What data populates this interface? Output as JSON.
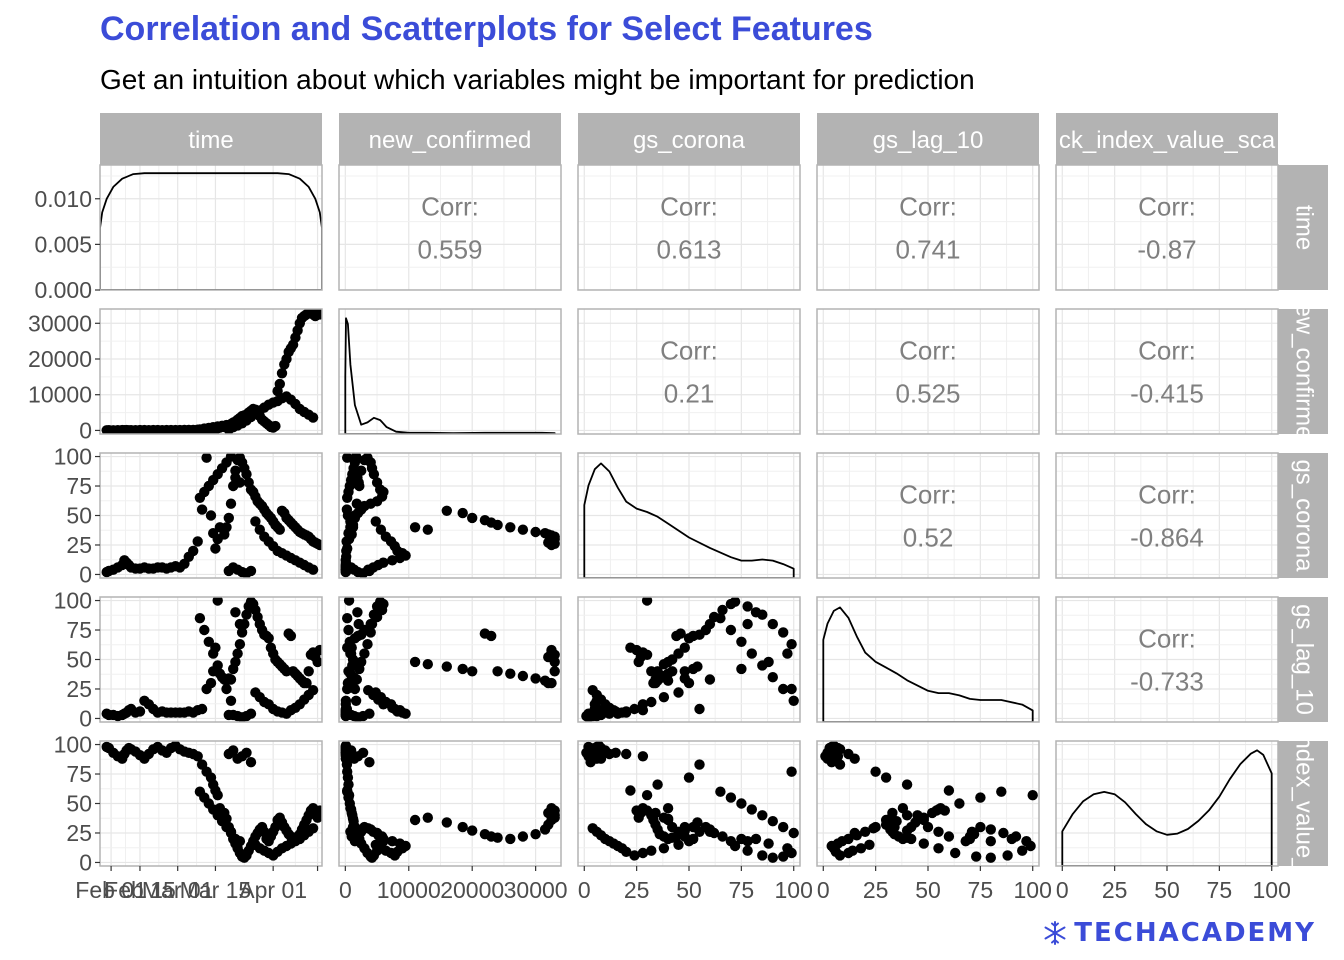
{
  "title": "Correlation and Scatterplots for Select Features",
  "subtitle": "Get an intuition about which variables might be important for prediction",
  "colors": {
    "title": "#3b4cd8",
    "strip": "#b3b3b3",
    "corr_text": "#7f7f7f",
    "points": "#000000",
    "grid": "#e6e6e6"
  },
  "logo_icon": "snowflake-icon",
  "logo_text": "TECHACADEMY",
  "chart_data": {
    "type": "scatter",
    "variables": [
      "time",
      "new_confirmed",
      "gs_corona",
      "gs_lag_10",
      "stock_index_value_scaled"
    ],
    "column_strips": [
      "time",
      "new_confirmed",
      "gs_corona",
      "gs_lag_10",
      "ck_index_value_sca"
    ],
    "row_strips": [
      "time",
      "ew_confirme",
      "gs_corona",
      "gs_lag_10",
      "ndex_value_"
    ],
    "corr_label": "Corr:",
    "correlations": [
      {
        "row": 0,
        "col": 1,
        "value": "0.559"
      },
      {
        "row": 0,
        "col": 2,
        "value": "0.613"
      },
      {
        "row": 0,
        "col": 3,
        "value": "0.741"
      },
      {
        "row": 0,
        "col": 4,
        "value": "-0.87"
      },
      {
        "row": 1,
        "col": 2,
        "value": "0.21"
      },
      {
        "row": 1,
        "col": 3,
        "value": "0.525"
      },
      {
        "row": 1,
        "col": 4,
        "value": "-0.415"
      },
      {
        "row": 2,
        "col": 3,
        "value": "0.52"
      },
      {
        "row": 2,
        "col": 4,
        "value": "-0.864"
      },
      {
        "row": 3,
        "col": 4,
        "value": "-0.733"
      }
    ],
    "axes": {
      "x": [
        {
          "range": [
            0,
            1
          ],
          "ticks": [
            0.05,
            0.18,
            0.35,
            0.52,
            0.78,
            0.98
          ],
          "labels": [
            "Feb 01",
            "Feb 15",
            "Mar 01",
            "Mar 15",
            "Apr 01",
            ""
          ]
        },
        {
          "range": [
            -1000,
            34000
          ],
          "ticks": [
            0,
            10000,
            20000,
            30000
          ],
          "labels": [
            "0",
            "10000",
            "20000",
            "30000"
          ]
        },
        {
          "range": [
            -3,
            103
          ],
          "ticks": [
            0,
            25,
            50,
            75,
            100
          ],
          "labels": [
            "0",
            "25",
            "50",
            "75",
            "100"
          ]
        },
        {
          "range": [
            -3,
            103
          ],
          "ticks": [
            0,
            25,
            50,
            75,
            100
          ],
          "labels": [
            "0",
            "25",
            "50",
            "75",
            "100"
          ]
        },
        {
          "range": [
            -3,
            103
          ],
          "ticks": [
            0,
            25,
            50,
            75,
            100
          ],
          "labels": [
            "0",
            "25",
            "50",
            "75",
            "100"
          ]
        }
      ],
      "y": [
        {
          "range": [
            0,
            0.0137
          ],
          "ticks": [
            0,
            0.005,
            0.01
          ],
          "labels": [
            "0.000",
            "0.005",
            "0.010"
          ]
        },
        {
          "range": [
            -1000,
            34000
          ],
          "ticks": [
            0,
            10000,
            20000,
            30000
          ],
          "labels": [
            "0",
            "10000",
            "20000",
            "30000"
          ]
        },
        {
          "range": [
            -3,
            103
          ],
          "ticks": [
            0,
            25,
            50,
            75,
            100
          ],
          "labels": [
            "0",
            "25",
            "50",
            "75",
            "100"
          ]
        },
        {
          "range": [
            -3,
            103
          ],
          "ticks": [
            0,
            25,
            50,
            75,
            100
          ],
          "labels": [
            "0",
            "25",
            "50",
            "75",
            "100"
          ]
        },
        {
          "range": [
            -3,
            103
          ],
          "ticks": [
            0,
            25,
            50,
            75,
            100
          ],
          "labels": [
            "0",
            "25",
            "50",
            "75",
            "100"
          ]
        }
      ]
    },
    "densities": [
      {
        "variable": "time",
        "x": [
          0,
          0.01,
          0.03,
          0.06,
          0.1,
          0.15,
          0.2,
          0.3,
          0.5,
          0.7,
          0.8,
          0.85,
          0.9,
          0.94,
          0.97,
          0.99,
          1
        ],
        "y": [
          0.0068,
          0.0085,
          0.01,
          0.0113,
          0.0122,
          0.0127,
          0.0128,
          0.0128,
          0.0128,
          0.0128,
          0.0128,
          0.0127,
          0.0122,
          0.0113,
          0.01,
          0.0085,
          0.0068
        ]
      },
      {
        "variable": "new_confirmed",
        "x": [
          0,
          100,
          400,
          800,
          1500,
          2500,
          3500,
          4500,
          5500,
          6500,
          8000,
          10000,
          13000,
          17000,
          22000,
          27000,
          31000,
          33000
        ],
        "y": [
          0.5,
          1.0,
          0.95,
          0.6,
          0.25,
          0.08,
          0.1,
          0.14,
          0.12,
          0.06,
          0.02,
          0.01,
          0.01,
          0.008,
          0.01,
          0.01,
          0.01,
          0.008
        ]
      },
      {
        "variable": "gs_corona",
        "x": [
          0,
          2,
          5,
          8,
          12,
          16,
          20,
          25,
          30,
          35,
          40,
          50,
          60,
          70,
          75,
          80,
          85,
          90,
          95,
          100
        ],
        "y": [
          0.63,
          0.8,
          0.94,
          0.99,
          0.92,
          0.78,
          0.66,
          0.6,
          0.57,
          0.53,
          0.47,
          0.35,
          0.26,
          0.18,
          0.15,
          0.15,
          0.16,
          0.15,
          0.12,
          0.08
        ]
      },
      {
        "variable": "gs_lag_10",
        "x": [
          0,
          2,
          5,
          8,
          12,
          16,
          20,
          25,
          30,
          35,
          40,
          50,
          55,
          60,
          65,
          70,
          75,
          85,
          95,
          100
        ],
        "y": [
          0.71,
          0.85,
          0.96,
          0.99,
          0.9,
          0.74,
          0.6,
          0.52,
          0.47,
          0.42,
          0.36,
          0.27,
          0.25,
          0.25,
          0.23,
          0.2,
          0.19,
          0.19,
          0.15,
          0.1
        ]
      },
      {
        "variable": "stock_index_value_scaled",
        "x": [
          0,
          5,
          10,
          15,
          20,
          25,
          30,
          35,
          40,
          45,
          50,
          55,
          60,
          65,
          70,
          75,
          80,
          85,
          90,
          93,
          96,
          100
        ],
        "y": [
          0.3,
          0.45,
          0.56,
          0.62,
          0.64,
          0.62,
          0.55,
          0.45,
          0.36,
          0.3,
          0.27,
          0.28,
          0.32,
          0.39,
          0.48,
          0.6,
          0.75,
          0.88,
          0.97,
          1.0,
          0.96,
          0.8
        ]
      }
    ],
    "observations": [
      [
        0.03,
        50,
        2,
        4,
        98
      ],
      [
        0.04,
        60,
        3,
        3,
        97
      ],
      [
        0.06,
        40,
        4,
        3,
        93
      ],
      [
        0.08,
        70,
        6,
        2,
        90
      ],
      [
        0.1,
        90,
        8,
        3,
        88
      ],
      [
        0.11,
        60,
        12,
        4,
        92
      ],
      [
        0.12,
        80,
        10,
        5,
        95
      ],
      [
        0.13,
        50,
        8,
        7,
        97
      ],
      [
        0.14,
        70,
        6,
        8,
        96
      ],
      [
        0.16,
        60,
        5,
        5,
        94
      ],
      [
        0.18,
        100,
        5,
        6,
        91
      ],
      [
        0.2,
        90,
        6,
        15,
        88
      ],
      [
        0.22,
        70,
        5,
        12,
        92
      ],
      [
        0.24,
        100,
        5,
        8,
        96
      ],
      [
        0.26,
        80,
        6,
        5,
        98
      ],
      [
        0.28,
        60,
        6,
        6,
        95
      ],
      [
        0.3,
        100,
        5,
        5,
        93
      ],
      [
        0.32,
        90,
        6,
        5,
        97
      ],
      [
        0.34,
        80,
        7,
        5,
        99
      ],
      [
        0.36,
        100,
        6,
        5,
        96
      ],
      [
        0.38,
        120,
        9,
        5,
        94
      ],
      [
        0.4,
        130,
        15,
        6,
        93
      ],
      [
        0.42,
        150,
        20,
        5,
        92
      ],
      [
        0.44,
        200,
        28,
        7,
        90
      ],
      [
        0.46,
        250,
        55,
        8,
        83
      ],
      [
        0.48,
        300,
        99,
        25,
        77
      ],
      [
        0.5,
        400,
        50,
        30,
        72
      ],
      [
        0.51,
        500,
        35,
        40,
        66
      ],
      [
        0.52,
        300,
        22,
        60,
        61
      ],
      [
        0.53,
        600,
        30,
        100,
        57
      ],
      [
        0.54,
        800,
        40,
        38,
        46
      ],
      [
        0.56,
        1000,
        34,
        33,
        42
      ],
      [
        0.57,
        1200,
        40,
        32,
        37
      ],
      [
        0.58,
        1500,
        48,
        34,
        30
      ],
      [
        0.59,
        1800,
        60,
        33,
        26
      ],
      [
        0.6,
        2200,
        75,
        42,
        20
      ],
      [
        0.61,
        2500,
        88,
        48,
        16
      ],
      [
        0.62,
        3000,
        97,
        55,
        12
      ],
      [
        0.63,
        3500,
        99,
        63,
        8
      ],
      [
        0.64,
        4000,
        95,
        73,
        5
      ],
      [
        0.65,
        4200,
        90,
        80,
        4
      ],
      [
        0.66,
        4500,
        85,
        88,
        6
      ],
      [
        0.67,
        5000,
        78,
        95,
        10
      ],
      [
        0.68,
        5500,
        72,
        99,
        14
      ],
      [
        0.69,
        6000,
        70,
        97,
        18
      ],
      [
        0.7,
        5800,
        66,
        92,
        22
      ],
      [
        0.71,
        5000,
        62,
        86,
        25
      ],
      [
        0.72,
        4000,
        60,
        80,
        28
      ],
      [
        0.73,
        3000,
        58,
        75,
        30
      ],
      [
        0.74,
        2500,
        55,
        71,
        26
      ],
      [
        0.75,
        2000,
        52,
        70,
        20
      ],
      [
        0.76,
        1500,
        50,
        68,
        18
      ],
      [
        0.77,
        1000,
        48,
        60,
        22
      ],
      [
        0.78,
        800,
        45,
        55,
        26
      ],
      [
        0.79,
        1200,
        42,
        50,
        30
      ],
      [
        0.8,
        11000,
        40,
        48,
        36
      ],
      [
        0.81,
        13000,
        38,
        46,
        38
      ],
      [
        0.82,
        16000,
        54,
        44,
        34
      ],
      [
        0.83,
        18500,
        52,
        42,
        30
      ],
      [
        0.84,
        20000,
        48,
        40,
        27
      ],
      [
        0.85,
        22000,
        46,
        72,
        24
      ],
      [
        0.86,
        23000,
        44,
        70,
        22
      ],
      [
        0.87,
        24000,
        42,
        40,
        21
      ],
      [
        0.88,
        26000,
        40,
        38,
        20
      ],
      [
        0.89,
        28000,
        38,
        36,
        22
      ],
      [
        0.9,
        30000,
        36,
        34,
        24
      ],
      [
        0.91,
        31500,
        35,
        32,
        28
      ],
      [
        0.92,
        32000,
        34,
        30,
        32
      ],
      [
        0.93,
        32500,
        33,
        30,
        36
      ],
      [
        0.94,
        33000,
        32,
        40,
        40
      ],
      [
        0.95,
        33000,
        30,
        54,
        44
      ],
      [
        0.96,
        32500,
        28,
        56,
        46
      ],
      [
        0.97,
        32000,
        27,
        52,
        42
      ],
      [
        0.98,
        33000,
        26,
        48,
        38
      ],
      [
        0.99,
        32500,
        25,
        58,
        44
      ],
      [
        0.58,
        200,
        3,
        3,
        92
      ],
      [
        0.6,
        900,
        6,
        3,
        95
      ],
      [
        0.62,
        1400,
        4,
        2,
        88
      ],
      [
        0.64,
        2000,
        2,
        1,
        90
      ],
      [
        0.66,
        2800,
        1,
        2,
        93
      ],
      [
        0.68,
        3800,
        3,
        4,
        85
      ],
      [
        0.7,
        4800,
        45,
        22,
        15
      ],
      [
        0.72,
        5600,
        38,
        18,
        12
      ],
      [
        0.74,
        6400,
        32,
        14,
        10
      ],
      [
        0.76,
        7200,
        28,
        12,
        8
      ],
      [
        0.78,
        7800,
        24,
        8,
        6
      ],
      [
        0.8,
        8200,
        20,
        6,
        9
      ],
      [
        0.82,
        9000,
        18,
        5,
        12
      ],
      [
        0.84,
        9500,
        16,
        4,
        14
      ],
      [
        0.86,
        8600,
        14,
        7,
        16
      ],
      [
        0.88,
        7400,
        12,
        9,
        18
      ],
      [
        0.9,
        6000,
        10,
        12,
        20
      ],
      [
        0.92,
        5200,
        8,
        16,
        23
      ],
      [
        0.94,
        4400,
        6,
        20,
        26
      ],
      [
        0.96,
        3600,
        4,
        24,
        29
      ],
      [
        0.45,
        300,
        65,
        85,
        60
      ],
      [
        0.47,
        500,
        70,
        75,
        55
      ],
      [
        0.49,
        700,
        75,
        65,
        50
      ],
      [
        0.51,
        900,
        80,
        55,
        45
      ],
      [
        0.53,
        1100,
        85,
        45,
        40
      ],
      [
        0.55,
        1300,
        90,
        35,
        35
      ],
      [
        0.57,
        1500,
        95,
        25,
        30
      ],
      [
        0.59,
        1700,
        100,
        15,
        25
      ],
      [
        0.61,
        1900,
        82,
        90,
        20
      ],
      [
        0.63,
        2100,
        78,
        80,
        18
      ]
    ]
  }
}
